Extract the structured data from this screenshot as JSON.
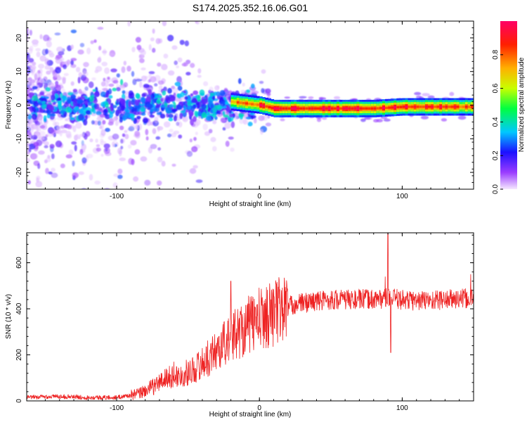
{
  "title": "S174.2025.352.16.06.G01",
  "chart_data": [
    {
      "type": "heatmap",
      "xlabel": "Height of straight line (km)",
      "ylabel": "Frequency (Hz)",
      "xlim": [
        -163,
        150
      ],
      "ylim": [
        -25,
        25
      ],
      "xticks": [
        -100,
        0,
        100
      ],
      "yticks": [
        -20,
        -10,
        0,
        10,
        20
      ],
      "colorbar": {
        "label": "Normalized spectral amplitude",
        "range": [
          0.0,
          1.0
        ],
        "ticks": [
          0.0,
          0.2,
          0.4,
          0.6,
          0.8
        ]
      },
      "ridge": [
        {
          "x": -163,
          "y": 0.5,
          "amp": 0.3
        },
        {
          "x": -100,
          "y": 0.5,
          "amp": 0.3
        },
        {
          "x": -40,
          "y": 1.0,
          "amp": 0.4
        },
        {
          "x": -20,
          "y": 1.0,
          "amp": 0.7
        },
        {
          "x": 0,
          "y": 0.0,
          "amp": 0.85
        },
        {
          "x": 10,
          "y": -1.0,
          "amp": 0.95
        },
        {
          "x": 80,
          "y": -1.0,
          "amp": 0.9
        },
        {
          "x": 100,
          "y": -0.5,
          "amp": 0.9
        },
        {
          "x": 150,
          "y": -0.5,
          "amp": 0.8
        }
      ]
    },
    {
      "type": "line",
      "xlabel": "Height of straight line (km)",
      "ylabel": "SNR (10 * v/v)",
      "xlim": [
        -163,
        150
      ],
      "ylim": [
        0,
        730
      ],
      "xticks": [
        -100,
        0,
        100
      ],
      "yticks": [
        0,
        200,
        400,
        600
      ],
      "series": [
        {
          "name": "SNR",
          "color": "#ee2222",
          "x": [
            -163,
            -140,
            -120,
            -100,
            -85,
            -75,
            -65,
            -55,
            -45,
            -35,
            -25,
            -15,
            -5,
            5,
            15,
            25,
            35,
            50,
            70,
            90,
            110,
            130,
            150
          ],
          "y": [
            15,
            20,
            15,
            15,
            30,
            60,
            100,
            110,
            140,
            190,
            250,
            300,
            340,
            370,
            400,
            420,
            430,
            440,
            440,
            445,
            435,
            440,
            445
          ]
        }
      ],
      "spikes": [
        {
          "x": -60,
          "y": 170
        },
        {
          "x": -20,
          "y": 520
        },
        {
          "x": -18,
          "y": 380
        },
        {
          "x": 90,
          "y": 730
        },
        {
          "x": 88,
          "y": 540
        },
        {
          "x": 92,
          "y": 210
        },
        {
          "x": 148,
          "y": 550
        }
      ]
    }
  ]
}
